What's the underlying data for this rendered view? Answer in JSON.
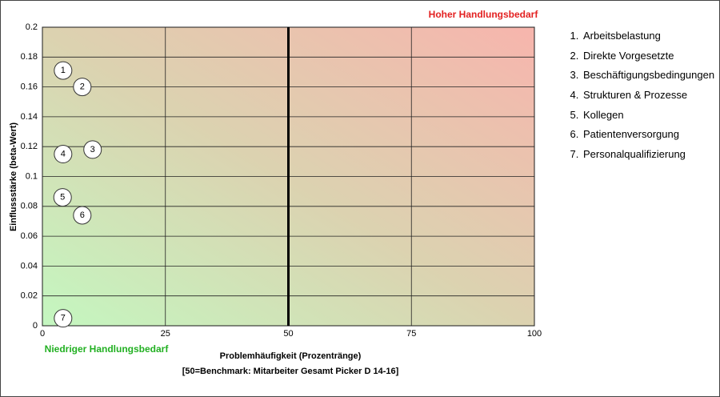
{
  "chart_data": {
    "type": "scatter",
    "title_high": "Hoher Handlungsbedarf",
    "title_low": "Niedriger Handlungsbedarf",
    "x_label": "Problemhäufigkeit (Prozentränge)",
    "x_sublabel": "[50=Benchmark: Mitarbeiter Gesamt Picker D 14-16]",
    "y_label": "Einflussstärke (beta-Wert)",
    "x": [
      4.2,
      8.1,
      10.2,
      4.2,
      4.1,
      8.1,
      4.2
    ],
    "values": [
      0.171,
      0.16,
      0.118,
      0.115,
      0.086,
      0.074,
      0.005
    ],
    "labels": [
      "1",
      "2",
      "3",
      "4",
      "5",
      "6",
      "7"
    ],
    "legend": [
      "Arbeitsbelastung",
      "Direkte Vorgesetzte",
      "Beschäftigungsbedingungen",
      "Strukturen & Prozesse",
      "Kollegen",
      "Patientenversorgung",
      "Personalqualifizierung"
    ],
    "xlim": [
      0,
      100
    ],
    "xticks": [
      0,
      25,
      50,
      75,
      100
    ],
    "ylim": [
      0,
      0.2
    ],
    "yticks": [
      0,
      0.02,
      0.04,
      0.06,
      0.08,
      0.1,
      0.12,
      0.14,
      0.16,
      0.18,
      0.2
    ],
    "benchmark_x": 50,
    "grid": true
  }
}
